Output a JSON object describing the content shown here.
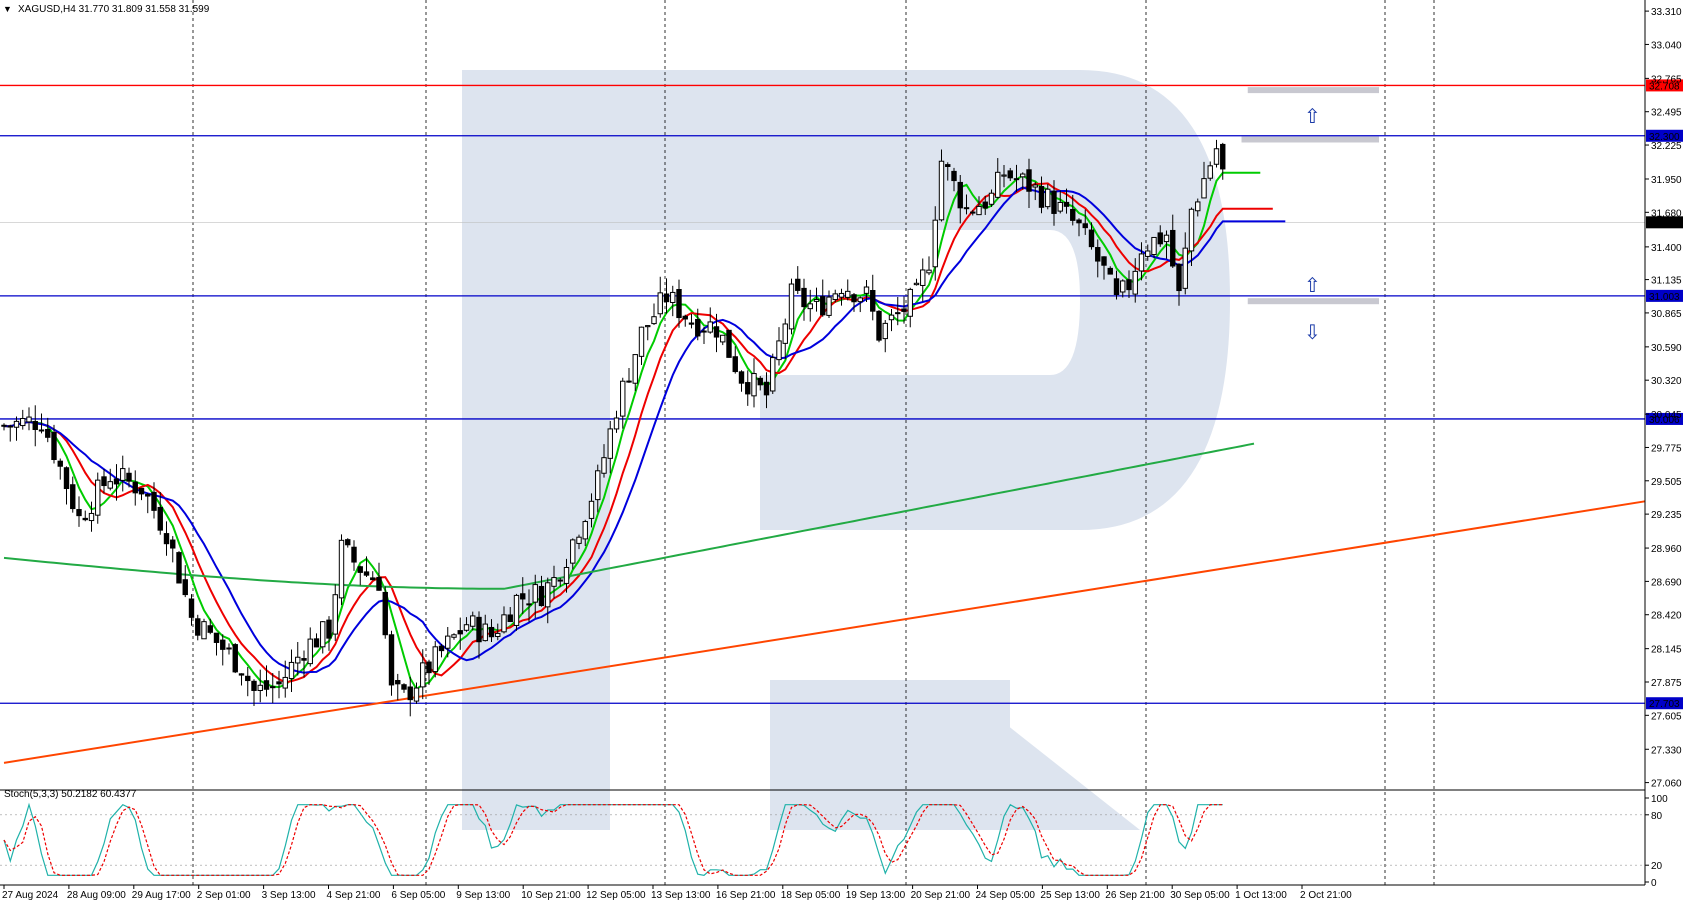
{
  "chart_data": {
    "type": "candlestick",
    "header": "XAGUSD,H4  31.770 31.809 31.558 31.599",
    "symbol_menu_icon": "triangle-down-icon",
    "price_axis": {
      "ticks": [
        "33.310",
        "33.040",
        "32.765",
        "32.495",
        "32.225",
        "31.950",
        "31.680",
        "31.400",
        "31.135",
        "30.865",
        "30.590",
        "30.320",
        "30.045",
        "29.775",
        "29.505",
        "29.235",
        "28.960",
        "28.690",
        "28.420",
        "28.145",
        "27.875",
        "27.605",
        "27.330",
        "27.060"
      ],
      "range": [
        27.06,
        33.31
      ]
    },
    "time_labels": [
      "27 Aug 2024",
      "28 Aug 09:00",
      "29 Aug 17:00",
      "2 Sep 01:00",
      "3 Sep 13:00",
      "4 Sep 21:00",
      "6 Sep 05:00",
      "9 Sep 13:00",
      "10 Sep 21:00",
      "12 Sep 05:00",
      "13 Sep 13:00",
      "16 Sep 21:00",
      "18 Sep 05:00",
      "19 Sep 13:00",
      "20 Sep 21:00",
      "24 Sep 05:00",
      "25 Sep 13:00",
      "26 Sep 21:00",
      "30 Sep 05:00",
      "1 Oct 13:00",
      "2 Oct 21:00"
    ],
    "levels": [
      {
        "label": "32.708",
        "price": 32.708,
        "color": "#ff0000",
        "label_bg": "#ff0000"
      },
      {
        "label": "32.300",
        "price": 32.3,
        "color": "#0000c8",
        "label_bg": "#0000c8"
      },
      {
        "label": "31.003",
        "price": 31.003,
        "color": "#0000c8",
        "label_bg": "#0000c8"
      },
      {
        "label": "30.006",
        "price": 30.006,
        "color": "#0000c8",
        "label_bg": "#0000c8"
      },
      {
        "label": "27.703",
        "price": 27.703,
        "color": "#0000c8",
        "label_bg": "#0000c8"
      }
    ],
    "current_price": {
      "label": "31.599",
      "price": 31.599
    },
    "trendline": {
      "color": "#ff4500",
      "from_bar": 0,
      "from_price": 27.22,
      "to_bar": 259,
      "to_price": 29.31
    },
    "ma_colors": {
      "green": "#00cc00",
      "red": "#ee0000",
      "blue": "#0000dd",
      "slow": "#22aa44"
    },
    "candle_count": 210,
    "arrows": [
      {
        "name": "up-arrow-icon",
        "glyph": "⇧",
        "bar": 208,
        "price": 32.47
      },
      {
        "name": "up-arrow-icon",
        "glyph": "⇧",
        "bar": 208,
        "price": 31.1
      },
      {
        "name": "down-arrow-icon",
        "glyph": "⇩",
        "bar": 208,
        "price": 30.72
      }
    ],
    "zones": [
      {
        "bar_from": 199,
        "bar_to": 220,
        "price": 32.67
      },
      {
        "bar_from": 198,
        "bar_to": 220,
        "price": 32.27
      },
      {
        "bar_from": 199,
        "bar_to": 220,
        "price": 30.96
      }
    ],
    "stochastic": {
      "label": "Stoch(5,3,3) 50.2182 60.4377",
      "ticks": [
        "100",
        "80",
        "20",
        "0"
      ],
      "main_color": "#20b2aa",
      "signal_color": "#ee0000"
    },
    "watermark_color": "#dde4ef"
  }
}
